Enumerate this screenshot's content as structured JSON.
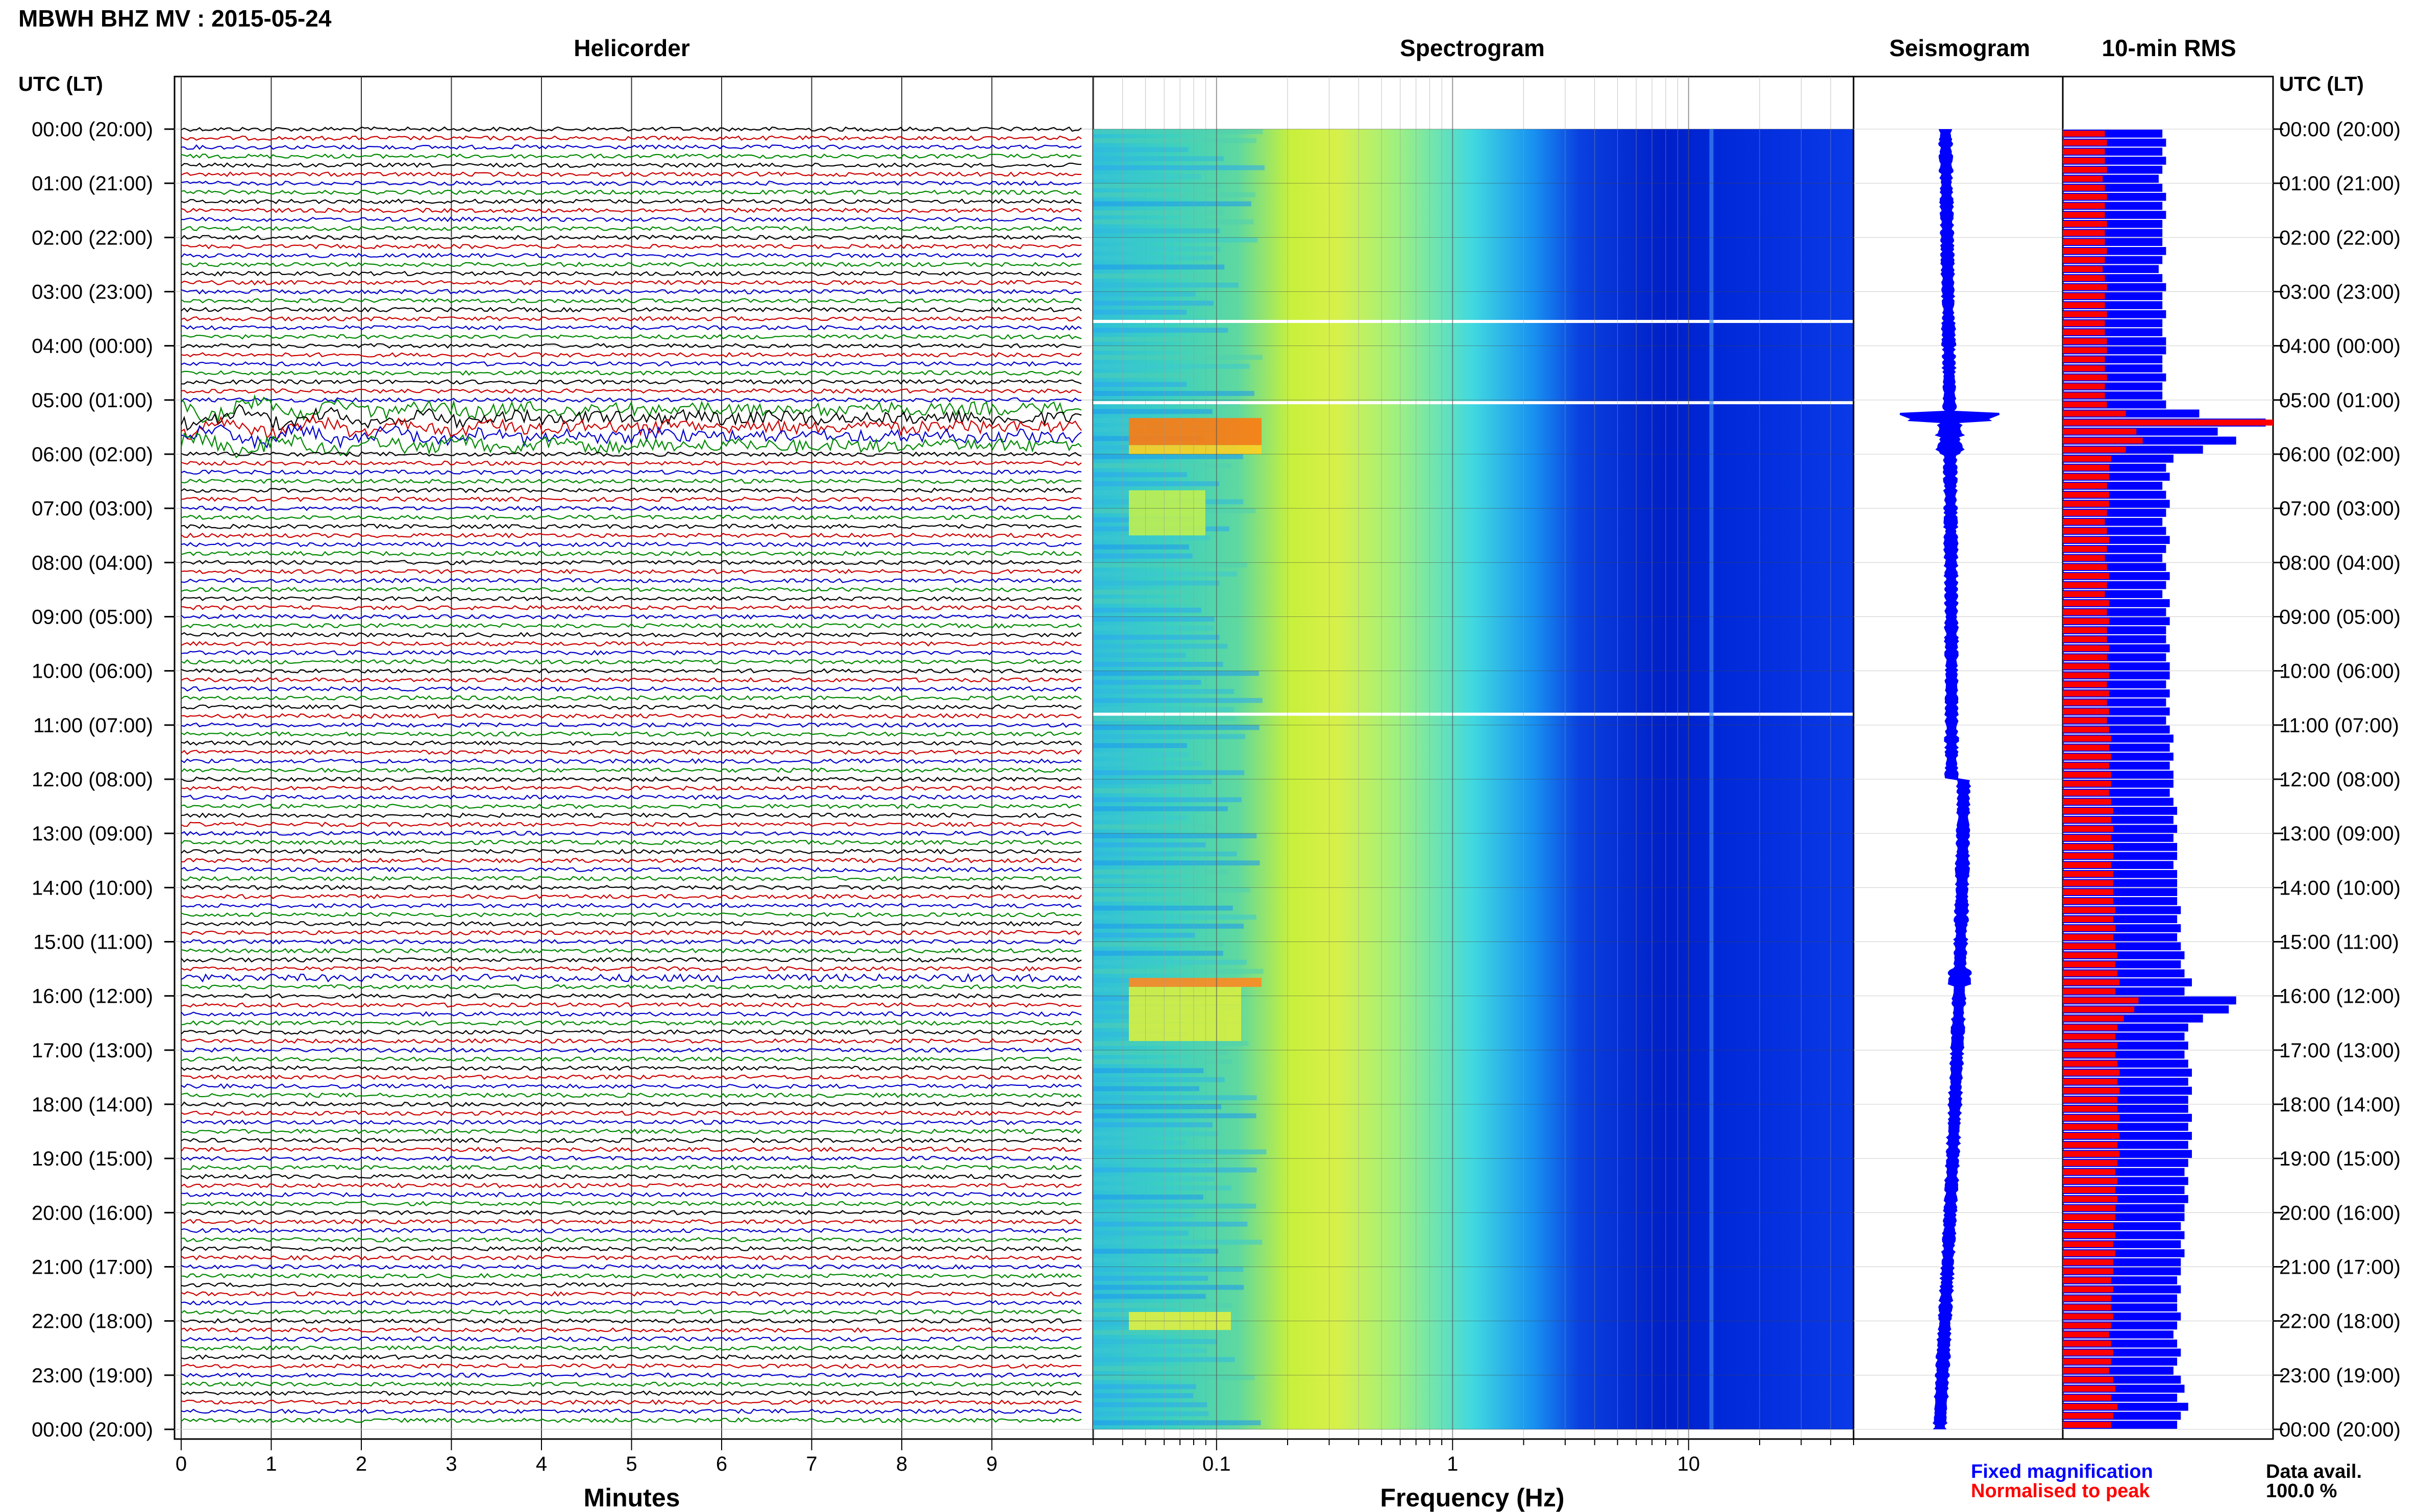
{
  "header": {
    "station": "MBWH BHZ MV : 2015-05-24",
    "tz_left": "UTC (LT)",
    "tz_right": "UTC (LT)"
  },
  "panels": {
    "helicorder": "Helicorder",
    "spectrogram": "Spectrogram",
    "seismogram": "Seismogram",
    "rms": "10-min RMS"
  },
  "time_labels": [
    "00:00 (20:00)",
    "01:00 (21:00)",
    "02:00 (22:00)",
    "03:00 (23:00)",
    "04:00 (00:00)",
    "05:00 (01:00)",
    "06:00 (02:00)",
    "07:00 (03:00)",
    "08:00 (04:00)",
    "09:00 (05:00)",
    "10:00 (06:00)",
    "11:00 (07:00)",
    "12:00 (08:00)",
    "13:00 (09:00)",
    "14:00 (10:00)",
    "15:00 (11:00)",
    "16:00 (12:00)",
    "17:00 (13:00)",
    "18:00 (14:00)",
    "19:00 (15:00)",
    "20:00 (16:00)",
    "21:00 (17:00)",
    "22:00 (18:00)",
    "23:00 (19:00)",
    "00:00 (20:00)"
  ],
  "axes": {
    "minutes_ticks": [
      "0",
      "1",
      "2",
      "3",
      "4",
      "5",
      "6",
      "7",
      "8",
      "9"
    ],
    "minutes_label": "Minutes",
    "freq_ticks": [
      "0.1",
      "1",
      "10"
    ],
    "freq_label": "Frequency (Hz)"
  },
  "legend": {
    "fixed": "Fixed magnification",
    "normalised": "Normalised to peak",
    "avail_label": "Data avail.",
    "avail_value": "100.0 %"
  },
  "colors": {
    "trace_cycle": [
      "#000000",
      "#cc0000",
      "#0000cc",
      "#008800"
    ],
    "rms_fixed": "#0000ff",
    "rms_norm": "#ff0000",
    "legend_fixed": "#0000ff",
    "legend_norm": "#ff0000"
  },
  "chart_data": {
    "type": "heatmap",
    "minutes_range": [
      0,
      10
    ],
    "freq_range_hz": [
      0.03,
      50
    ],
    "freq_scale": "log",
    "hours": 24,
    "rows_per_hour": 6,
    "events_utc_hours": [
      5.2,
      15.6,
      21.9
    ],
    "data_gaps_utc_hours": [
      3.55,
      5.05,
      10.8
    ],
    "rms_fixed": [
      0.27,
      0.28,
      0.27,
      0.28,
      0.27,
      0.26,
      0.27,
      0.28,
      0.27,
      0.28,
      0.27,
      0.27,
      0.27,
      0.28,
      0.27,
      0.26,
      0.27,
      0.28,
      0.27,
      0.27,
      0.28,
      0.27,
      0.27,
      0.28,
      0.28,
      0.27,
      0.27,
      0.28,
      0.27,
      0.27,
      0.28,
      0.37,
      0.55,
      0.42,
      0.47,
      0.38,
      0.3,
      0.28,
      0.29,
      0.27,
      0.28,
      0.29,
      0.28,
      0.27,
      0.28,
      0.29,
      0.28,
      0.27,
      0.28,
      0.29,
      0.28,
      0.27,
      0.29,
      0.28,
      0.29,
      0.28,
      0.28,
      0.29,
      0.28,
      0.29,
      0.29,
      0.28,
      0.29,
      0.28,
      0.29,
      0.28,
      0.29,
      0.3,
      0.29,
      0.3,
      0.29,
      0.3,
      0.3,
      0.29,
      0.3,
      0.31,
      0.3,
      0.31,
      0.3,
      0.31,
      0.31,
      0.3,
      0.31,
      0.31,
      0.31,
      0.31,
      0.32,
      0.31,
      0.32,
      0.31,
      0.32,
      0.33,
      0.32,
      0.33,
      0.35,
      0.33,
      0.47,
      0.45,
      0.38,
      0.34,
      0.33,
      0.34,
      0.33,
      0.34,
      0.35,
      0.34,
      0.35,
      0.34,
      0.34,
      0.35,
      0.34,
      0.35,
      0.34,
      0.35,
      0.34,
      0.33,
      0.34,
      0.33,
      0.34,
      0.33,
      0.33,
      0.32,
      0.33,
      0.32,
      0.33,
      0.32,
      0.32,
      0.31,
      0.32,
      0.31,
      0.31,
      0.32,
      0.31,
      0.3,
      0.31,
      0.32,
      0.31,
      0.3,
      0.32,
      0.33,
      0.31,
      0.34,
      0.32,
      0.31
    ],
    "rms_norm": [
      0.2,
      0.21,
      0.2,
      0.2,
      0.21,
      0.19,
      0.2,
      0.21,
      0.2,
      0.2,
      0.21,
      0.2,
      0.2,
      0.21,
      0.2,
      0.19,
      0.2,
      0.21,
      0.2,
      0.2,
      0.21,
      0.2,
      0.2,
      0.21,
      0.21,
      0.2,
      0.2,
      0.21,
      0.2,
      0.2,
      0.21,
      0.3,
      1.0,
      0.35,
      0.38,
      0.3,
      0.23,
      0.22,
      0.22,
      0.21,
      0.22,
      0.22,
      0.21,
      0.2,
      0.21,
      0.22,
      0.21,
      0.2,
      0.21,
      0.22,
      0.21,
      0.2,
      0.22,
      0.21,
      0.22,
      0.21,
      0.21,
      0.22,
      0.21,
      0.22,
      0.22,
      0.21,
      0.22,
      0.21,
      0.22,
      0.21,
      0.22,
      0.23,
      0.22,
      0.23,
      0.22,
      0.23,
      0.23,
      0.22,
      0.23,
      0.24,
      0.23,
      0.24,
      0.23,
      0.24,
      0.24,
      0.23,
      0.24,
      0.24,
      0.24,
      0.24,
      0.25,
      0.24,
      0.25,
      0.24,
      0.25,
      0.26,
      0.25,
      0.26,
      0.27,
      0.25,
      0.36,
      0.34,
      0.29,
      0.26,
      0.25,
      0.26,
      0.25,
      0.26,
      0.27,
      0.26,
      0.27,
      0.26,
      0.26,
      0.27,
      0.26,
      0.27,
      0.26,
      0.27,
      0.26,
      0.25,
      0.26,
      0.25,
      0.26,
      0.25,
      0.25,
      0.24,
      0.25,
      0.24,
      0.25,
      0.24,
      0.24,
      0.23,
      0.24,
      0.23,
      0.23,
      0.24,
      0.23,
      0.22,
      0.23,
      0.24,
      0.23,
      0.22,
      0.24,
      0.25,
      0.23,
      0.26,
      0.24,
      0.23
    ]
  }
}
